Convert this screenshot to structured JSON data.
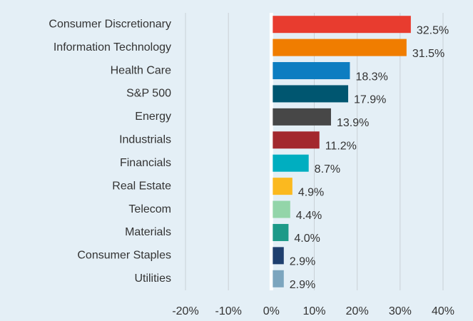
{
  "chart_data": {
    "type": "hbar",
    "categories": [
      "Consumer Discretionary",
      "Information Technology",
      "Health Care",
      "S&P 500",
      "Energy",
      "Industrials",
      "Financials",
      "Real Estate",
      "Telecom",
      "Materials",
      "Consumer Staples",
      "Utilities"
    ],
    "values": [
      32.5,
      31.5,
      18.3,
      17.9,
      13.9,
      11.2,
      8.7,
      4.9,
      4.4,
      4.0,
      2.9,
      2.9
    ],
    "value_labels": [
      "32.5%",
      "31.5%",
      "18.3%",
      "17.9%",
      "13.9%",
      "11.2%",
      "8.7%",
      "4.9%",
      "4.4%",
      "4.0%",
      "2.9%",
      "2.9%"
    ],
    "colors": [
      "#e83c2f",
      "#f07d00",
      "#0d7dc1",
      "#005670",
      "#474747",
      "#a3282e",
      "#00aec0",
      "#fbb91f",
      "#93d5a9",
      "#1d9a88",
      "#1f3f6e",
      "#7ca5be"
    ],
    "xlim": [
      -20,
      40
    ],
    "xticks": [
      {
        "value": -20,
        "label": "-20%"
      },
      {
        "value": -10,
        "label": "-10%"
      },
      {
        "value": 0,
        "label": "0%"
      },
      {
        "value": 10,
        "label": "10%"
      },
      {
        "value": 20,
        "label": "20%"
      },
      {
        "value": 30,
        "label": "30%"
      },
      {
        "value": 40,
        "label": "40%"
      }
    ],
    "grid": true
  }
}
